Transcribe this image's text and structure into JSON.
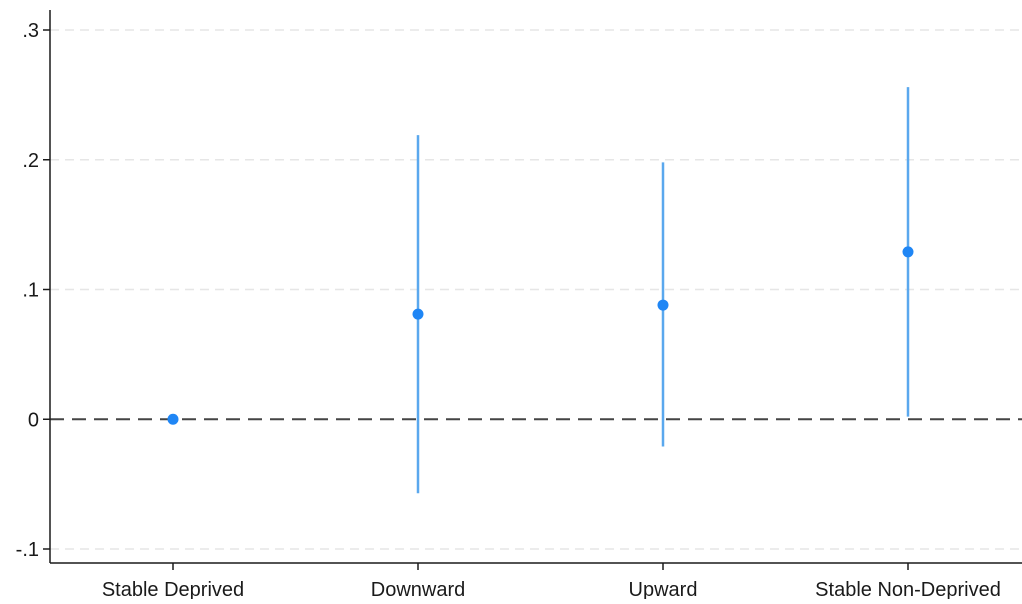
{
  "chart_data": {
    "type": "scatter",
    "title": "",
    "xlabel": "",
    "ylabel": "",
    "categories": [
      "Stable Deprived",
      "Downward",
      "Upward",
      "Stable Non-Deprived"
    ],
    "series": [
      {
        "estimates": [
          0,
          0.081,
          0.088,
          0.129
        ],
        "ci_lower": [
          0,
          -0.057,
          -0.021,
          0.002
        ],
        "ci_upper": [
          0,
          0.219,
          0.198,
          0.256
        ]
      }
    ],
    "ylim": [
      -0.11,
      0.31
    ],
    "yticks": [
      -0.1,
      0,
      0.1,
      0.2,
      0.3
    ],
    "ytick_labels": [
      "-.1",
      "0",
      ".1",
      ".2",
      ".3"
    ],
    "reference_line": 0,
    "grid": true,
    "colors": {
      "marker": "#1f86f5",
      "ci": "#5aa8ee",
      "reference": "#444444",
      "grid": "#e6e6e6",
      "axis": "#1a1a1a"
    }
  }
}
